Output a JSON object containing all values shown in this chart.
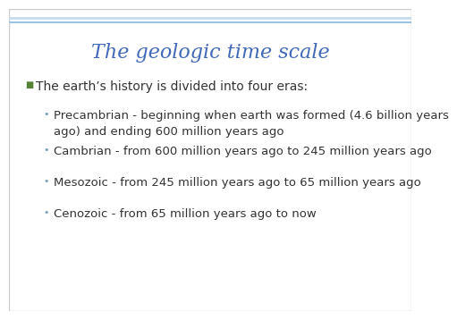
{
  "title": "The geologic time scale",
  "title_color": "#4169B8",
  "title_fontsize": 16,
  "background_color": "#FFFFFF",
  "top_line_color1": "#C5DCF0",
  "top_line_color2": "#9BC3E6",
  "bullet_color": "#548235",
  "sub_bullet_color": "#7B9EB8",
  "text_color": "#333333",
  "main_bullet": "The earth’s history is divided into four eras:",
  "main_bullet_fontsize": 10,
  "sub_bullets": [
    "Precambrian - beginning when earth was formed (4.6 billion years\nago) and ending 600 million years ago",
    "Cambrian - from 600 million years ago to 245 million years ago",
    "Mesozoic - from 245 million years ago to 65 million years ago",
    "Cenozoic - from 65 million years ago to now"
  ],
  "sub_bullet_fontsize": 9.5,
  "border_color": "#CCCCCC"
}
